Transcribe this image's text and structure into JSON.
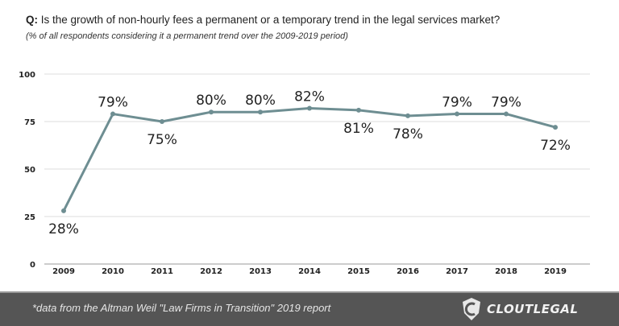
{
  "header": {
    "question_prefix": "Q:",
    "question": " Is the growth of non-hourly fees a permanent or a temporary trend in the legal services market?",
    "subtitle": "(% of all respondents considering it a permanent trend over the 2009-2019 period)"
  },
  "chart_data": {
    "type": "line",
    "title": "Q: Is the growth of non-hourly fees a permanent or a temporary trend in the legal services market?",
    "subtitle": "(% of all respondents considering it a permanent trend over the 2009-2019 period)",
    "categories": [
      "2009",
      "2010",
      "2011",
      "2012",
      "2013",
      "2014",
      "2015",
      "2016",
      "2017",
      "2018",
      "2019"
    ],
    "values": [
      28,
      79,
      75,
      80,
      80,
      82,
      81,
      78,
      79,
      79,
      72
    ],
    "data_labels": [
      "28%",
      "79%",
      "75%",
      "80%",
      "80%",
      "82%",
      "81%",
      "78%",
      "79%",
      "79%",
      "72%"
    ],
    "label_side": [
      "below",
      "above",
      "below",
      "above",
      "above",
      "above",
      "below",
      "below",
      "above",
      "above",
      "below"
    ],
    "ylim": [
      0,
      100
    ],
    "yticks": [
      "0",
      "25",
      "50",
      "75",
      "100"
    ],
    "grid": true,
    "line_color": "#6e8e92"
  },
  "footer": {
    "note": "*data from the Altman Weil \"Law Firms in Transition\" 2019 report",
    "logo_text": "CLOUTLEGAL",
    "bg_color": "#555555"
  }
}
